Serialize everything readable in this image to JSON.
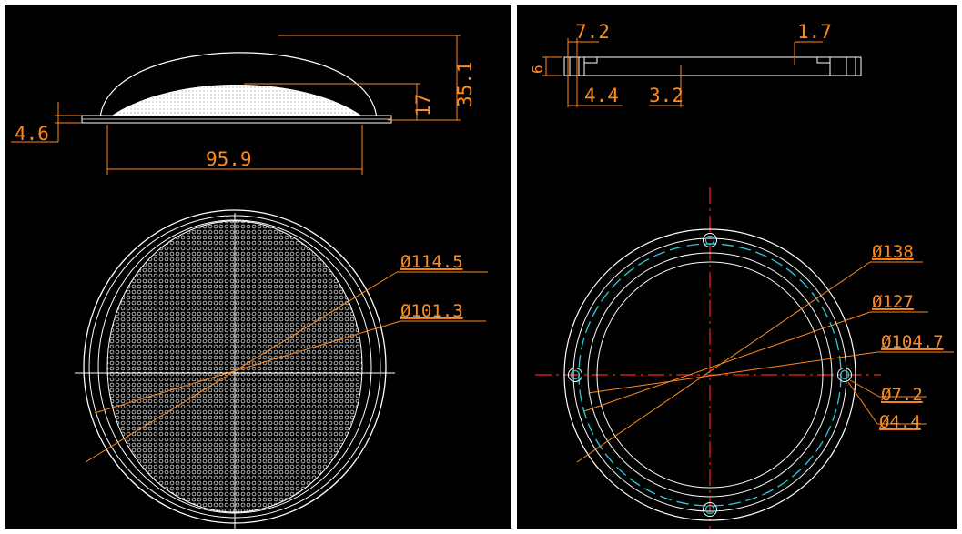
{
  "colors": {
    "background": "#000000",
    "geometry": "#ffffff",
    "dimension": "#ff8a1c",
    "centerline": "#ff2020",
    "bolt_circle": "#25c8d8"
  },
  "lens": {
    "side_view": {
      "height_total": "35.1",
      "dome_height": "17",
      "flange_thickness": "4.6",
      "base_width": "95.9"
    },
    "top_view": {
      "outer_diameter": "Ø114.5",
      "inner_diameter": "Ø101.3"
    }
  },
  "ring": {
    "section_view": {
      "width": "7.2",
      "thickness": "6",
      "step": "4.4",
      "depth": "3.2",
      "lip": "1.7"
    },
    "plan_view": {
      "outer_diameter": "Ø138",
      "bolt_circle_diameter": "Ø127",
      "inner_diameter": "Ø104.7",
      "hole_outer": "Ø7.2",
      "hole_inner": "Ø4.4"
    }
  }
}
